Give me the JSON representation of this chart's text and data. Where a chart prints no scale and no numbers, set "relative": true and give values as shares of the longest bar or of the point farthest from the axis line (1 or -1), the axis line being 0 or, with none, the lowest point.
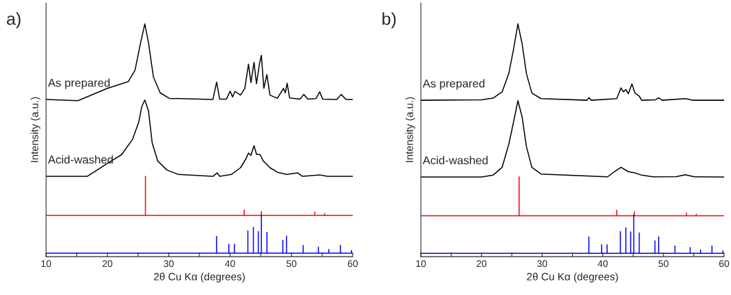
{
  "chart_data": [
    {
      "type": "line",
      "title": "a)",
      "xlabel": "2θ Cu Kα (degrees)",
      "ylabel": "Intensity (a.u.)",
      "relative": true,
      "tick_labels": "x",
      "xlim": [
        10,
        60
      ],
      "xticks": [
        10,
        {
          "value": 15,
          "label": null
        },
        20,
        {
          "value": 25,
          "label": null
        },
        30,
        {
          "value": 35,
          "label": null
        },
        40,
        {
          "value": 45,
          "label": null
        },
        50,
        {
          "value": 55,
          "label": null
        },
        60
      ],
      "grid": false,
      "legend": false,
      "marker": "none",
      "line_style": "solid",
      "series": [
        {
          "name": "As prepared",
          "color": "#000000",
          "x": [
            10,
            15.2,
            20,
            23.4,
            24.5,
            25.4,
            26.1,
            26.7,
            27.5,
            28.6,
            30.1,
            37.2,
            37.8,
            38.3,
            39.4,
            40.0,
            40.4,
            40.8,
            41.7,
            42.4,
            43.0,
            43.4,
            43.9,
            44.3,
            44.8,
            45.1,
            45.5,
            46.0,
            46.5,
            47.7,
            48.7,
            49.0,
            49.3,
            49.7,
            51.4,
            52.0,
            52.7,
            54.0,
            54.6,
            55.1,
            57.4,
            58.1,
            58.9,
            60
          ],
          "values": [
            0.675,
            0.67,
            0.723,
            0.752,
            0.801,
            0.918,
            1.0,
            0.918,
            0.772,
            0.704,
            0.68,
            0.675,
            0.75,
            0.677,
            0.677,
            0.711,
            0.686,
            0.71,
            0.694,
            0.723,
            0.827,
            0.748,
            0.835,
            0.743,
            0.83,
            0.865,
            0.723,
            0.782,
            0.694,
            0.68,
            0.723,
            0.704,
            0.745,
            0.682,
            0.677,
            0.697,
            0.677,
            0.679,
            0.708,
            0.677,
            0.675,
            0.697,
            0.675,
            0.675
          ]
        },
        {
          "name": "Acid-washed",
          "color": "#000000",
          "x": [
            10,
            16.7,
            17.8,
            20,
            22.3,
            24.1,
            25.1,
            25.6,
            26.1,
            26.7,
            27.3,
            28.2,
            29.7,
            31.6,
            37.2,
            37.9,
            38.3,
            40.2,
            41.7,
            42.6,
            43.0,
            43.4,
            43.9,
            44.3,
            44.9,
            45.4,
            46.0,
            46.5,
            47.7,
            49.2,
            51.0,
            51.8,
            54.6,
            55.9,
            60
          ],
          "values": [
            0.345,
            0.345,
            0.363,
            0.401,
            0.438,
            0.504,
            0.577,
            0.645,
            0.673,
            0.626,
            0.489,
            0.411,
            0.372,
            0.353,
            0.345,
            0.36,
            0.345,
            0.353,
            0.382,
            0.421,
            0.445,
            0.435,
            0.477,
            0.44,
            0.438,
            0.411,
            0.396,
            0.382,
            0.363,
            0.353,
            0.36,
            0.345,
            0.351,
            0.345,
            0.345
          ]
        },
        {
          "color": "#ff0000",
          "x": [
            10,
            26.2,
            26.2,
            26.2,
            42.3,
            42.3,
            42.3,
            45.1,
            45.1,
            45.1,
            53.8,
            53.8,
            53.8,
            55.4,
            55.4,
            55.4,
            60
          ],
          "values": [
            0.177,
            0.177,
            0.345,
            0.177,
            0.177,
            0.201,
            0.177,
            0.177,
            0.195,
            0.177,
            0.177,
            0.191,
            0.177,
            0.177,
            0.185,
            0.177,
            0.177
          ]
        },
        {
          "color": "#0000ff",
          "x": [
            10,
            37.8,
            37.8,
            37.8,
            39.8,
            39.8,
            39.8,
            40.7,
            40.7,
            40.7,
            42.9,
            42.9,
            42.9,
            43.8,
            43.8,
            43.8,
            44.6,
            44.6,
            44.6,
            45.1,
            45.1,
            45.1,
            46.0,
            46.0,
            46.0,
            48.6,
            48.6,
            48.6,
            49.2,
            49.2,
            49.2,
            51.9,
            51.9,
            51.9,
            54.4,
            54.4,
            54.4,
            56.1,
            56.1,
            56.1,
            58.0,
            58.0,
            58.0,
            59.8,
            59.8,
            59.8,
            60
          ],
          "values": [
            0.015,
            0.015,
            0.087,
            0.015,
            0.015,
            0.053,
            0.015,
            0.015,
            0.053,
            0.015,
            0.015,
            0.111,
            0.015,
            0.015,
            0.126,
            0.015,
            0.015,
            0.108,
            0.015,
            0.015,
            0.179,
            0.015,
            0.015,
            0.104,
            0.015,
            0.015,
            0.07,
            0.015,
            0.015,
            0.088,
            0.015,
            0.015,
            0.048,
            0.015,
            0.015,
            0.041,
            0.015,
            0.015,
            0.031,
            0.015,
            0.015,
            0.048,
            0.015,
            0.015,
            0.027,
            0.015,
            0.015
          ]
        }
      ]
    },
    {
      "type": "line",
      "title": "b)",
      "xlabel": "2θ Cu Kα (degrees)",
      "ylabel": "Intensity (a.u.)",
      "relative": true,
      "tick_labels": "x",
      "xlim": [
        10,
        60
      ],
      "xticks": [
        10,
        {
          "value": 15,
          "label": null
        },
        20,
        {
          "value": 25,
          "label": null
        },
        30,
        {
          "value": 35,
          "label": null
        },
        40,
        {
          "value": 45,
          "label": null
        },
        50,
        {
          "value": 55,
          "label": null
        },
        60
      ],
      "grid": false,
      "legend": false,
      "marker": "none",
      "line_style": "solid",
      "series": [
        {
          "name": "As prepared",
          "color": "#000000",
          "x": [
            10,
            20,
            21.9,
            23.4,
            24.5,
            25.3,
            26.0,
            26.7,
            27.4,
            28.3,
            29.8,
            37.4,
            37.7,
            38.1,
            42.3,
            43.0,
            43.4,
            43.8,
            44.2,
            44.8,
            45.3,
            46.0,
            46.4,
            48.7,
            49.2,
            49.8,
            53.6,
            54.8,
            60
          ],
          "values": [
            0.672,
            0.674,
            0.681,
            0.708,
            0.787,
            0.894,
            1.0,
            0.914,
            0.787,
            0.703,
            0.679,
            0.672,
            0.683,
            0.672,
            0.679,
            0.725,
            0.708,
            0.718,
            0.7,
            0.742,
            0.703,
            0.69,
            0.672,
            0.674,
            0.682,
            0.672,
            0.679,
            0.672,
            0.672
          ]
        },
        {
          "name": "Acid-washed",
          "color": "#000000",
          "x": [
            10,
            20,
            21.9,
            23.4,
            24.5,
            25.3,
            26.0,
            26.7,
            27.4,
            28.3,
            29.8,
            40.8,
            41.9,
            43.0,
            44.2,
            45.3,
            46.4,
            48.3,
            52.1,
            53.6,
            55.1,
            60
          ],
          "values": [
            0.342,
            0.342,
            0.35,
            0.384,
            0.483,
            0.581,
            0.67,
            0.6,
            0.473,
            0.384,
            0.355,
            0.343,
            0.365,
            0.384,
            0.365,
            0.36,
            0.35,
            0.343,
            0.344,
            0.352,
            0.343,
            0.342
          ]
        },
        {
          "color": "#ff0000",
          "x": [
            10,
            26.2,
            26.2,
            26.2,
            42.3,
            42.3,
            42.3,
            45.2,
            45.2,
            45.2,
            53.8,
            53.8,
            53.8,
            55.4,
            55.4,
            55.4,
            60
          ],
          "values": [
            0.176,
            0.176,
            0.343,
            0.176,
            0.176,
            0.2,
            0.176,
            0.176,
            0.193,
            0.176,
            0.176,
            0.188,
            0.176,
            0.176,
            0.183,
            0.176,
            0.176
          ]
        },
        {
          "color": "#0000ff",
          "x": [
            10,
            37.7,
            37.7,
            37.7,
            39.8,
            39.8,
            39.8,
            40.7,
            40.7,
            40.7,
            42.9,
            42.9,
            42.9,
            43.8,
            43.8,
            43.8,
            44.6,
            44.6,
            44.6,
            45.1,
            45.1,
            45.1,
            46.0,
            46.0,
            46.0,
            48.6,
            48.6,
            48.6,
            49.2,
            49.2,
            49.2,
            51.9,
            51.9,
            51.9,
            54.4,
            54.4,
            54.4,
            56.1,
            56.1,
            56.1,
            58.0,
            58.0,
            58.0,
            59.8,
            59.8,
            59.8,
            60
          ],
          "values": [
            0.014,
            0.014,
            0.085,
            0.014,
            0.014,
            0.051,
            0.014,
            0.014,
            0.051,
            0.014,
            0.014,
            0.108,
            0.014,
            0.014,
            0.124,
            0.014,
            0.014,
            0.106,
            0.014,
            0.014,
            0.18,
            0.014,
            0.014,
            0.102,
            0.014,
            0.014,
            0.068,
            0.014,
            0.014,
            0.086,
            0.014,
            0.014,
            0.046,
            0.014,
            0.014,
            0.039,
            0.014,
            0.014,
            0.029,
            0.014,
            0.014,
            0.046,
            0.014,
            0.014,
            0.025,
            0.014,
            0.014
          ]
        }
      ]
    }
  ]
}
